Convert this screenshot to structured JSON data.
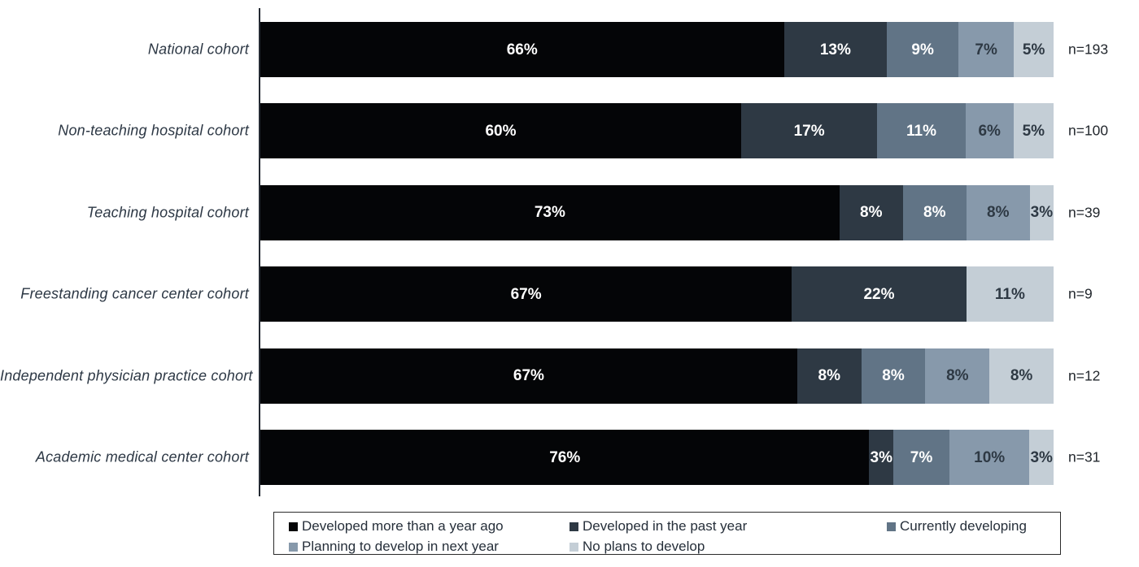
{
  "chart_data": {
    "type": "bar",
    "orientation": "horizontal",
    "stacked": true,
    "value_suffix": "%",
    "categories": [
      "National cohort",
      "Non-teaching hospital cohort",
      "Teaching hospital cohort",
      "Freestanding cancer center cohort",
      "Independent physician practice cohort",
      "Academic medical center cohort"
    ],
    "n_labels": [
      "n=193",
      "n=100",
      "n=39",
      "n=9",
      "n=12",
      "n=31"
    ],
    "series": [
      {
        "name": "Developed more than a year ago",
        "color": "#040507",
        "label_color": "#ffffff",
        "values": [
          66,
          60,
          73,
          67,
          67,
          76
        ]
      },
      {
        "name": "Developed in the past year",
        "color": "#2e3944",
        "label_color": "#ffffff",
        "values": [
          13,
          17,
          8,
          22,
          8,
          3
        ]
      },
      {
        "name": "Currently developing",
        "color": "#617486",
        "label_color": "#ffffff",
        "values": [
          9,
          11,
          8,
          0,
          8,
          7
        ]
      },
      {
        "name": "Planning to develop in next year",
        "color": "#8799ab",
        "label_color": "#2e3944",
        "values": [
          7,
          6,
          8,
          0,
          8,
          10
        ]
      },
      {
        "name": "No plans to develop",
        "color": "#c4ced6",
        "label_color": "#2e3944",
        "values": [
          5,
          5,
          3,
          11,
          8,
          3
        ]
      }
    ],
    "legend_rows": [
      [
        0,
        1,
        2
      ],
      [
        3,
        4
      ]
    ],
    "xlim": [
      0,
      100
    ],
    "grid": false,
    "legend_position": "bottom"
  }
}
